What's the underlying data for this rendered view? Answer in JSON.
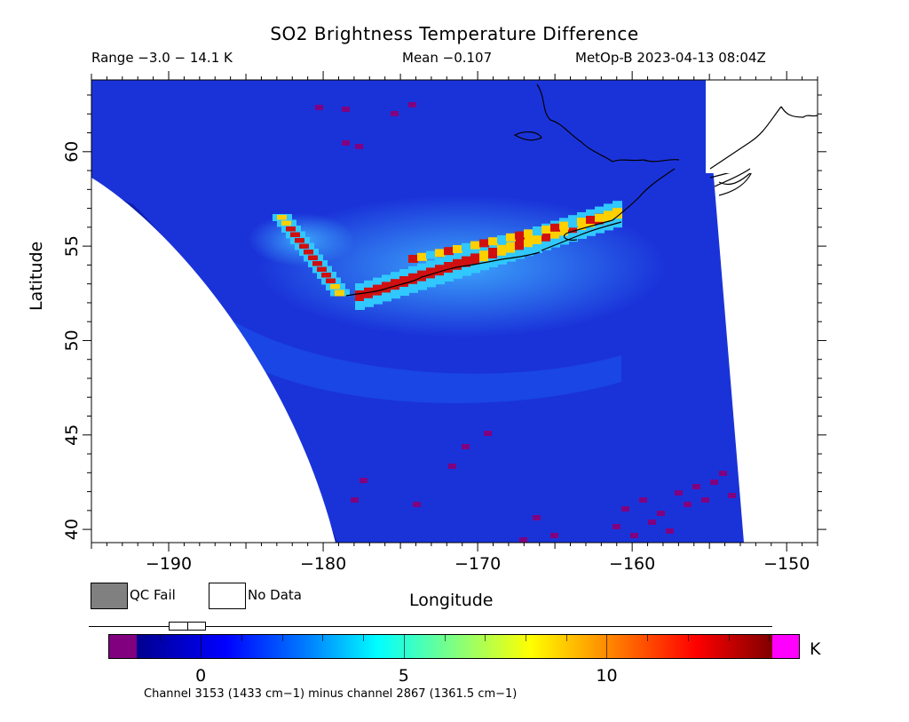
{
  "header": {
    "title": "SO2 Brightness Temperature Difference",
    "range": "Range −3.0 − 14.1 K",
    "mean": "Mean −0.107",
    "satellite": "MetOp-B 2023-04-13 08:04Z"
  },
  "axes": {
    "xlabel": "Longitude",
    "ylabel": "Latitude",
    "xticks": [
      "−190",
      "−180",
      "−170",
      "−160",
      "−150"
    ],
    "yticks": [
      "40",
      "45",
      "50",
      "55",
      "60"
    ],
    "xrange": [
      -195,
      -148
    ],
    "yrange": [
      39.3,
      63.8
    ]
  },
  "legend": {
    "qc_fail": "QC Fail",
    "no_data": "No Data",
    "qc_color": "#808080",
    "nodata_color": "#ffffff"
  },
  "colorbar": {
    "unit": "K",
    "ticks": [
      "0",
      "5",
      "10"
    ],
    "tick_values": [
      0,
      5,
      10
    ],
    "vmin": -1.6,
    "vmax": 14.1,
    "under_color": "#800080",
    "over_color": "#ff00ff",
    "footnote": "Channel 3153 (1433 cm−1) minus channel 2867 (1361.5 cm−1)"
  },
  "map": {
    "background_color": "#1a33d9",
    "plume_color_high": "#d01010",
    "plume_color_mid": "#ffd000",
    "plume_color_low": "#30c8ff"
  }
}
